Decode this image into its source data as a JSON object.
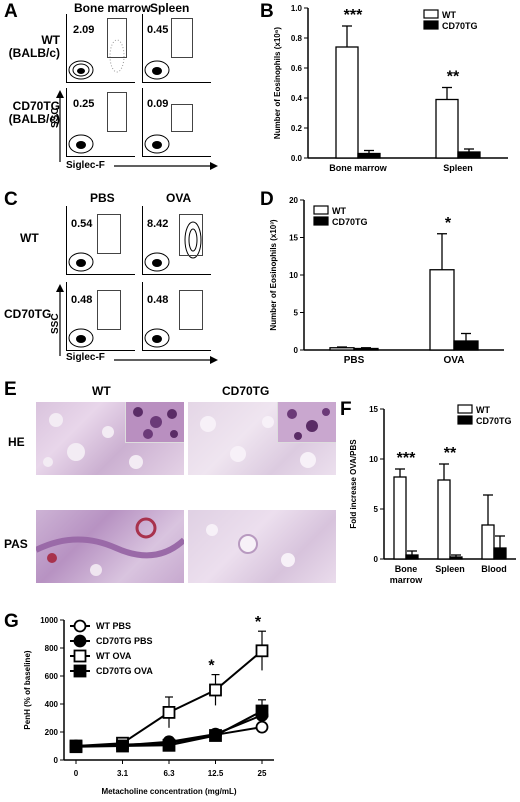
{
  "panels": {
    "A": "A",
    "B": "B",
    "C": "C",
    "D": "D",
    "E": "E",
    "F": "F",
    "G": "G"
  },
  "flowA": {
    "col1": "Bone marrow",
    "col2": "Spleen",
    "row1": "WT\n(BALB/c)",
    "row2": "CD70TG\n(BALB/c)",
    "pct": [
      "2.09",
      "0.45",
      "0.25",
      "0.09"
    ],
    "yaxis": "SSC",
    "xaxis": "Siglec-F"
  },
  "flowC": {
    "col1": "PBS",
    "col2": "OVA",
    "row1": "WT",
    "row2": "CD70TG",
    "pct": [
      "0.54",
      "8.42",
      "0.48",
      "0.48"
    ],
    "yaxis": "SSC",
    "xaxis": "Siglec-F"
  },
  "histE": {
    "col1": "WT",
    "col2": "CD70TG",
    "row1": "HE",
    "row2": "PAS"
  },
  "chart_data": [
    {
      "id": "B",
      "type": "bar",
      "categories": [
        "Bone marrow",
        "Spleen"
      ],
      "series": [
        {
          "name": "WT",
          "values": [
            0.74,
            0.39
          ],
          "errors": [
            0.14,
            0.08
          ],
          "fill": "#ffffff"
        },
        {
          "name": "CD70TG",
          "values": [
            0.03,
            0.04
          ],
          "errors": [
            0.02,
            0.02
          ],
          "fill": "#000000"
        }
      ],
      "ylabel": "Number of Eosinophils (x10⁶)",
      "ylim": [
        0,
        1.0
      ],
      "yticks": [
        "0.0",
        "0.2",
        "0.4",
        "0.6",
        "0.8",
        "1.0"
      ],
      "annotations": [
        "***",
        "**"
      ],
      "legend": "top-right"
    },
    {
      "id": "D",
      "type": "bar",
      "categories": [
        "PBS",
        "OVA"
      ],
      "series": [
        {
          "name": "WT",
          "values": [
            0.3,
            10.7
          ],
          "errors": [
            0.1,
            4.8
          ],
          "fill": "#ffffff"
        },
        {
          "name": "CD70TG",
          "values": [
            0.2,
            1.2
          ],
          "errors": [
            0.1,
            1.0
          ],
          "fill": "#000000"
        }
      ],
      "ylabel": "Number of Eosinophils (x10³)",
      "ylim": [
        0,
        20
      ],
      "yticks": [
        "0",
        "5",
        "10",
        "15",
        "20"
      ],
      "annotations": [
        "",
        "*"
      ],
      "legend": "top-left"
    },
    {
      "id": "F",
      "type": "bar",
      "categories": [
        "Bone\nmarrow",
        "Spleen",
        "Blood"
      ],
      "series": [
        {
          "name": "WT",
          "values": [
            8.2,
            7.9,
            3.4
          ],
          "errors": [
            0.8,
            1.6,
            3.0
          ],
          "fill": "#ffffff"
        },
        {
          "name": "CD70TG",
          "values": [
            0.4,
            0.2,
            1.1
          ],
          "errors": [
            0.4,
            0.2,
            1.2
          ],
          "fill": "#000000"
        }
      ],
      "ylabel": "Fold increase OVA/PBS",
      "ylim": [
        0,
        15
      ],
      "yticks": [
        "0",
        "5",
        "10",
        "15"
      ],
      "annotations": [
        "***",
        "**",
        ""
      ],
      "legend": "top-right"
    },
    {
      "id": "G",
      "type": "line",
      "x": [
        "0",
        "3.1",
        "6.3",
        "12.5",
        "25"
      ],
      "series": [
        {
          "name": "WT PBS",
          "marker": "circle-open",
          "values": [
            100,
            110,
            120,
            180,
            235
          ],
          "errors": [
            10,
            10,
            15,
            20,
            20
          ]
        },
        {
          "name": "CD70TG PBS",
          "marker": "circle-filled",
          "values": [
            100,
            105,
            130,
            185,
            320
          ],
          "errors": [
            10,
            10,
            20,
            20,
            60
          ]
        },
        {
          "name": "WT OVA",
          "marker": "square-open",
          "values": [
            100,
            120,
            340,
            500,
            780
          ],
          "errors": [
            10,
            15,
            110,
            110,
            140
          ]
        },
        {
          "name": "CD70TG OVA",
          "marker": "square-filled",
          "values": [
            95,
            100,
            105,
            175,
            350
          ],
          "errors": [
            10,
            10,
            20,
            20,
            80
          ]
        }
      ],
      "xlabel": "Metacholine concentration (mg/mL)",
      "ylabel": "PenH (% of baseline)",
      "ylim": [
        0,
        1000
      ],
      "yticks": [
        "0",
        "200",
        "400",
        "600",
        "800",
        "1000"
      ],
      "annotations": [
        "",
        "",
        "",
        "*",
        "*"
      ],
      "legend": "top-left"
    }
  ]
}
